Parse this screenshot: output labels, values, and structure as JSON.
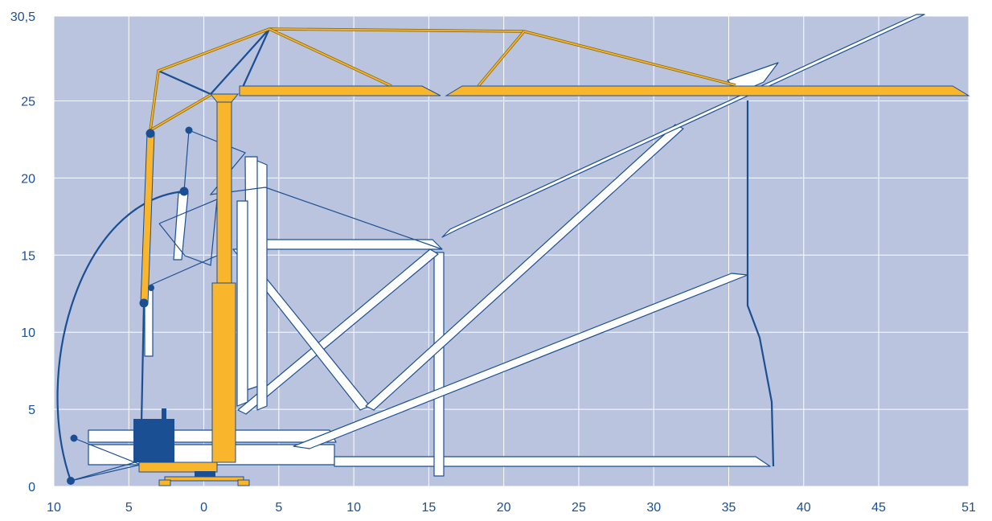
{
  "chart_data": {
    "type": "crane-diagram",
    "xlim": [
      -10,
      51
    ],
    "xticks": [
      {
        "value": -10,
        "label": "10"
      },
      {
        "value": -5,
        "label": "5"
      },
      0,
      5,
      10,
      15,
      20,
      25,
      30,
      35,
      40,
      45,
      51
    ],
    "ylim": [
      0,
      30.5
    ],
    "yticks": [
      0,
      5,
      10,
      15,
      20,
      25,
      {
        "value": 30.5,
        "label": "30,5"
      }
    ],
    "grid": true
  }
}
